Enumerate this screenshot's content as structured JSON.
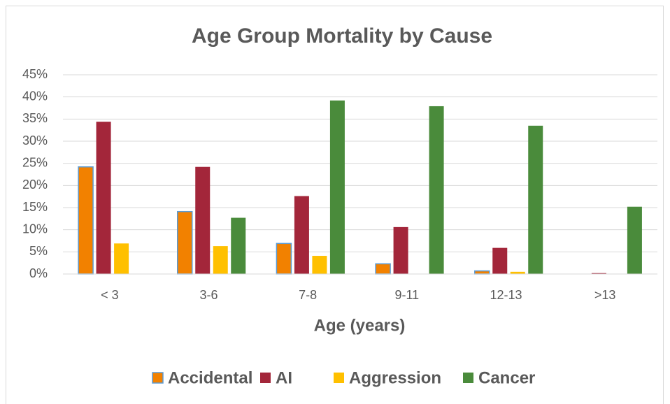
{
  "chart_data": {
    "type": "bar",
    "title": "Age Group Mortality by Cause",
    "x_label": "Age (years)",
    "categories": [
      "< 3",
      "3-6",
      "7-8",
      "9-11",
      "12-13",
      ">13"
    ],
    "series": [
      {
        "name": "Accidental",
        "color": "#f28100",
        "values": [
          24.2,
          14.1,
          6.9,
          2.3,
          0.7,
          0
        ]
      },
      {
        "name": "AI",
        "color": "#a3263a",
        "values": [
          34.4,
          24.2,
          17.6,
          10.6,
          5.9,
          0.2
        ]
      },
      {
        "name": "Aggression",
        "color": "#ffc000",
        "values": [
          6.9,
          6.3,
          4.1,
          0,
          0.5,
          0
        ]
      },
      {
        "name": "Cancer",
        "color": "#4a8b3b",
        "values": [
          0,
          12.7,
          39.2,
          37.9,
          33.5,
          15.2
        ]
      }
    ],
    "ylim": [
      0,
      45
    ],
    "yticks": [
      {
        "value": 0,
        "label": "0%"
      },
      {
        "value": 5,
        "label": "5%"
      },
      {
        "value": 10,
        "label": "10%"
      },
      {
        "value": 15,
        "label": "15%"
      },
      {
        "value": 20,
        "label": "20%"
      },
      {
        "value": 25,
        "label": "25%"
      },
      {
        "value": 30,
        "label": "30%"
      },
      {
        "value": 35,
        "label": "35%"
      },
      {
        "value": 40,
        "label": "40%"
      },
      {
        "value": 45,
        "label": "45%"
      }
    ],
    "grid": true,
    "legend": "bottom"
  }
}
